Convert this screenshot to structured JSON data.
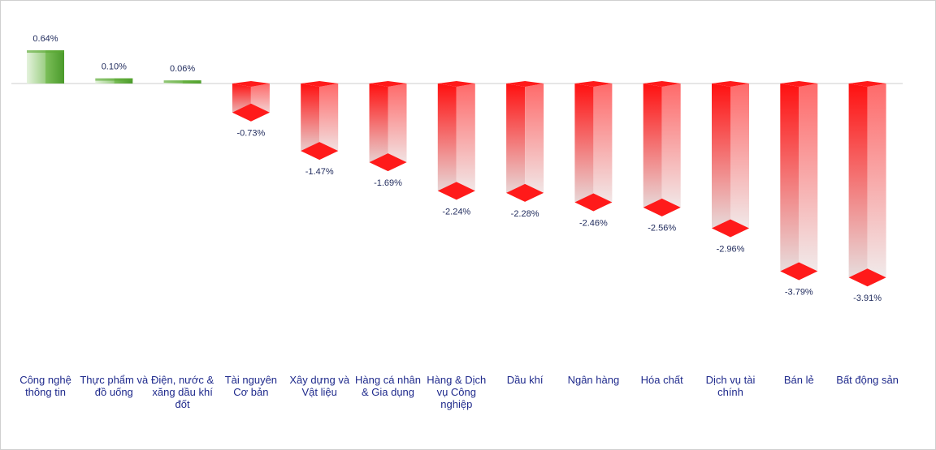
{
  "chart_data": {
    "type": "bar",
    "categories": [
      "Công nghệ thông tin",
      "Thực phẩm và đồ uống",
      "Điện, nước & xăng dầu khí đốt",
      "Tài nguyên Cơ bản",
      "Xây dựng và Vật liệu",
      "Hàng cá nhân & Gia dụng",
      "Hàng & Dịch vụ Công nghiệp",
      "Dầu khí",
      "Ngân hàng",
      "Hóa chất",
      "Dịch vụ tài chính",
      "Bán lẻ",
      "Bất động sản"
    ],
    "values": [
      0.64,
      0.1,
      0.06,
      -0.73,
      -1.47,
      -1.69,
      -2.24,
      -2.28,
      -2.46,
      -2.56,
      -2.96,
      -3.79,
      -3.91
    ],
    "value_labels": [
      "0.64%",
      "0.10%",
      "0.06%",
      "-0.73%",
      "-1.47%",
      "-1.69%",
      "-2.24%",
      "-2.28%",
      "-2.46%",
      "-2.56%",
      "-2.96%",
      "-3.79%",
      "-3.91%"
    ],
    "colors": {
      "positive": "#5aa832",
      "negative": "#ff1a1a"
    }
  }
}
